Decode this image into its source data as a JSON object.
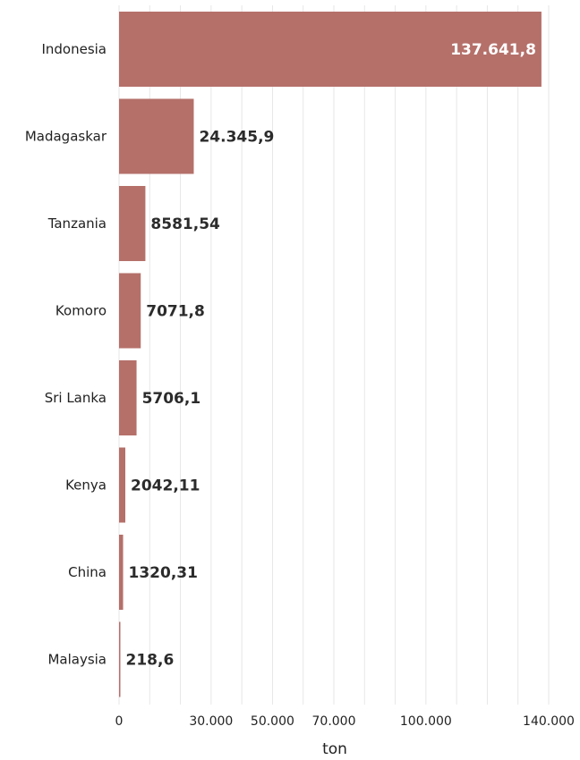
{
  "chart_data": {
    "type": "bar",
    "orientation": "horizontal",
    "categories": [
      "Indonesia",
      "Madagaskar",
      "Tanzania",
      "Komoro",
      "Sri Lanka",
      "Kenya",
      "China",
      "Malaysia"
    ],
    "values": [
      137641.8,
      24345.9,
      8581.54,
      7071.8,
      5706.1,
      2042.11,
      1320.31,
      218.6
    ],
    "value_labels": [
      "137.641,8",
      "24.345,9",
      "8581,54",
      "7071,8",
      "5706,1",
      "2042,11",
      "1320,31",
      "218,6"
    ],
    "title": "",
    "xlabel": "ton",
    "ylabel": "",
    "xlim": [
      0,
      140000
    ],
    "x_ticks": [
      0,
      30000,
      50000,
      70000,
      100000,
      140000
    ],
    "x_tick_labels": [
      "0",
      "30.000",
      "50.000",
      "70.000",
      "100.000",
      "140.000"
    ],
    "x_gridlines": [
      0,
      10000,
      20000,
      30000,
      40000,
      50000,
      60000,
      70000,
      80000,
      90000,
      100000,
      110000,
      120000,
      130000,
      140000
    ],
    "grid": true,
    "legend": "none",
    "bar_color": "#b5706a",
    "label_color_inside": "#ffffff",
    "label_color_outside": "#2b2b2b"
  }
}
